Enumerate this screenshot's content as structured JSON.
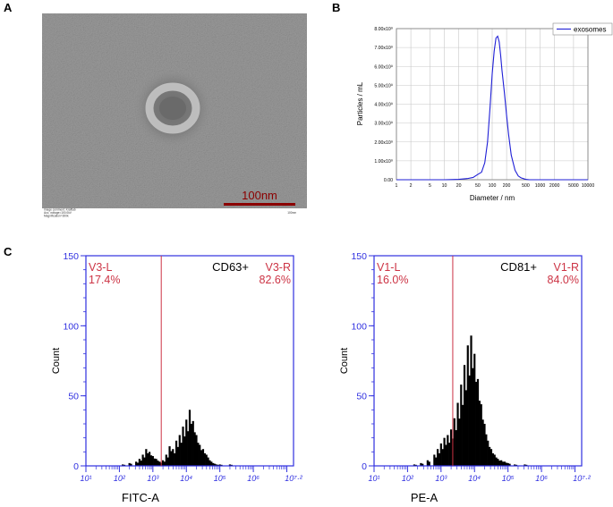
{
  "panels": {
    "a": "A",
    "b": "B",
    "c": "C"
  },
  "tem": {
    "scale_bar_label": "100nm",
    "caption_lines": [
      "Image comment: Kraftlab",
      "Acc. voltage=100.0kV",
      "Magnification=300k"
    ],
    "caption_right": "100nm",
    "colors": {
      "background": "#8f8f8f",
      "scale_bar": "#8b0000"
    }
  },
  "chart_data": [
    {
      "type": "line",
      "xlabel": "Diameter / nm",
      "ylabel": "Particles / mL",
      "x_ticks": [
        "1",
        "2",
        "5",
        "10",
        "20",
        "50",
        "100",
        "200",
        "500",
        "1000",
        "2000",
        "5000",
        "10000"
      ],
      "y_ticks": [
        "0.00",
        "1.00x10⁹",
        "2.00x10⁹",
        "3.00x10⁹",
        "4.00x10⁹",
        "5.00x10⁹",
        "6.00x10⁹",
        "7.00x10⁹",
        "8.00x10⁹"
      ],
      "ylim": [
        0,
        8000000000.0
      ],
      "x_scale": "log",
      "xlim": [
        1,
        10000
      ],
      "grid": true,
      "legend_position": "top-right",
      "line_color": "#1f1fd6",
      "series": [
        {
          "name": "exosomes",
          "x": [
            1,
            5,
            10,
            20,
            30,
            40,
            50,
            60,
            70,
            80,
            90,
            100,
            110,
            120,
            130,
            140,
            150,
            160,
            180,
            200,
            220,
            250,
            300,
            350,
            400,
            500,
            600,
            1000,
            10000
          ],
          "y": [
            0,
            0,
            0,
            20000000.0,
            60000000.0,
            120000000.0,
            280000000.0,
            400000000.0,
            900000000.0,
            2000000000.0,
            3800000000.0,
            5600000000.0,
            6800000000.0,
            7500000000.0,
            7600000000.0,
            7300000000.0,
            6600000000.0,
            5800000000.0,
            4600000000.0,
            3400000000.0,
            2400000000.0,
            1300000000.0,
            500000000.0,
            200000000.0,
            100000000.0,
            20000000.0,
            0,
            0,
            0
          ]
        }
      ]
    },
    {
      "type": "bar",
      "title": "",
      "marker_label": "CD63+",
      "xlabel": "FITC-A",
      "ylabel": "Count",
      "ylim": [
        0,
        150
      ],
      "y_ticks": [
        "0",
        "50",
        "100",
        "150"
      ],
      "x_ticks": [
        "10¹",
        "10²",
        "10³",
        "10⁴",
        "10⁵",
        "10⁶",
        "10⁷·²"
      ],
      "x_scale": "log",
      "xlim_log10": [
        1,
        7.2
      ],
      "gate_log10": 3.25,
      "gates": [
        {
          "name": "V3-L",
          "percent": "17.4%"
        },
        {
          "name": "V3-R",
          "percent": "82.6%"
        }
      ],
      "colors": {
        "axis": "#3030e0",
        "gate": "#cc3344",
        "bars": "#000000"
      },
      "histogram": {
        "x_log10": [
          2.1,
          2.3,
          2.5,
          2.6,
          2.7,
          2.8,
          2.9,
          3.0,
          3.1,
          3.2,
          3.3,
          3.4,
          3.5,
          3.6,
          3.7,
          3.8,
          3.9,
          4.0,
          4.1,
          4.2,
          4.3,
          4.4,
          4.5,
          4.6,
          4.7,
          4.8,
          4.9,
          5.0,
          5.3,
          5.6
        ],
        "counts": [
          1,
          2,
          3,
          5,
          8,
          12,
          10,
          7,
          5,
          3,
          4,
          8,
          14,
          12,
          18,
          22,
          28,
          33,
          40,
          32,
          22,
          15,
          12,
          8,
          4,
          2,
          1,
          1,
          1,
          0
        ]
      }
    },
    {
      "type": "bar",
      "title": "",
      "marker_label": "CD81+",
      "xlabel": "PE-A",
      "ylabel": "Count",
      "ylim": [
        0,
        150
      ],
      "y_ticks": [
        "0",
        "50",
        "100",
        "150"
      ],
      "x_ticks": [
        "10¹",
        "10²",
        "10³",
        "10⁴",
        "10⁵",
        "10⁶",
        "10⁷·²"
      ],
      "x_scale": "log",
      "xlim_log10": [
        1,
        7.2
      ],
      "gate_log10": 3.35,
      "gates": [
        {
          "name": "V1-L",
          "percent": "16.0%"
        },
        {
          "name": "V1-R",
          "percent": "84.0%"
        }
      ],
      "colors": {
        "axis": "#3030e0",
        "gate": "#cc3344",
        "bars": "#000000"
      },
      "histogram": {
        "x_log10": [
          2.2,
          2.4,
          2.6,
          2.8,
          2.9,
          3.0,
          3.1,
          3.2,
          3.3,
          3.4,
          3.5,
          3.6,
          3.7,
          3.8,
          3.9,
          4.0,
          4.1,
          4.2,
          4.3,
          4.4,
          4.5,
          4.6,
          4.7,
          4.8,
          4.9,
          5.0,
          5.2,
          5.5,
          6.0
        ],
        "counts": [
          1,
          2,
          4,
          8,
          12,
          16,
          20,
          22,
          26,
          34,
          45,
          58,
          72,
          86,
          93,
          80,
          62,
          44,
          30,
          18,
          12,
          8,
          5,
          4,
          3,
          2,
          1,
          1,
          0
        ]
      }
    }
  ]
}
